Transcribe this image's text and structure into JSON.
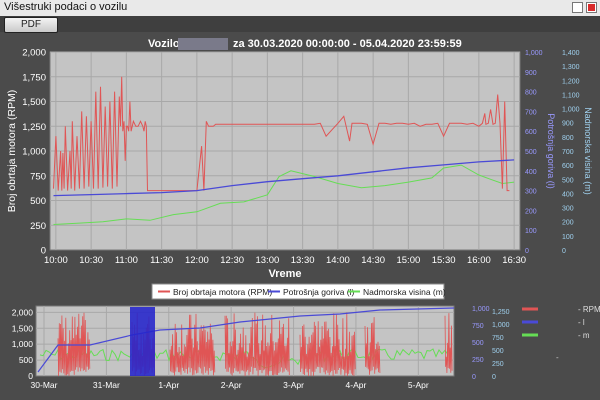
{
  "window": {
    "title": "Višestruki podaci o vozilu"
  },
  "toolbar": {
    "pdf_label": "PDF"
  },
  "main_chart": {
    "title_prefix": "Vozilo",
    "title_suffix": "za 30.03.2020 00:00:00 - 05.04.2020 23:59:59",
    "xlabel": "Vreme",
    "ylabel_left": "Broj obrtaja motora (RPM)",
    "ylabel_mid": "Potrošnja goriva (l)",
    "ylabel_right": "Nadmorska visina (m)",
    "x_ticks": [
      "10:00",
      "10:30",
      "11:00",
      "11:30",
      "12:00",
      "12:30",
      "13:00",
      "13:30",
      "14:00",
      "14:30",
      "15:00",
      "15:30",
      "16:00",
      "16:30"
    ],
    "y_left_ticks": [
      "0",
      "250",
      "500",
      "750",
      "1,000",
      "1,250",
      "1,500",
      "1,750",
      "2,000"
    ],
    "y_mid_ticks": [
      "0",
      "100",
      "200",
      "300",
      "400",
      "500",
      "600",
      "700",
      "800",
      "900",
      "1,000"
    ],
    "y_right_ticks": [
      "0",
      "100",
      "200",
      "300",
      "400",
      "500",
      "600",
      "700",
      "800",
      "900",
      "1,000",
      "1,100",
      "1,200",
      "1,300",
      "1,400"
    ],
    "colors": {
      "rpm": "#e05555",
      "fuel": "#4a4ad6",
      "altitude": "#66dd55",
      "plot_bg": "#c4c4c4"
    }
  },
  "legend": [
    {
      "name": "Broj obrtaja motora (RPM)",
      "color": "#e05555"
    },
    {
      "name": "Potrošnja goriva (l)",
      "color": "#4a4ad6"
    },
    {
      "name": "Nadmorska visina (m)",
      "color": "#66dd55"
    }
  ],
  "overview_chart": {
    "x_ticks": [
      "30-Mar",
      "31-Mar",
      "1-Apr",
      "2-Apr",
      "3-Apr",
      "4-Apr",
      "5-Apr"
    ],
    "y_left_ticks": [
      "0",
      "500",
      "1,000",
      "1,500",
      "2,000"
    ],
    "y_mid_ticks": [
      "0",
      "250",
      "500",
      "750",
      "1,000"
    ],
    "y_right_ticks": [
      "0",
      "250",
      "500",
      "750",
      "1,000",
      "1,250"
    ]
  },
  "side_legend": [
    {
      "name": "- RPM",
      "color": "#e05555"
    },
    {
      "name": "- l",
      "color": "#4a4ad6"
    },
    {
      "name": "- m",
      "color": "#66dd55"
    }
  ],
  "chart_data": {
    "type": "line",
    "title": "Vozilo za 30.03.2020 00:00:00 - 05.04.2020 23:59:59",
    "xlabel": "Vreme",
    "ylabel": "Broj obrtaja motora (RPM)",
    "xlim": [
      "09:55",
      "16:35"
    ],
    "ylim": [
      0,
      2000
    ],
    "grid": true,
    "legend_position": "bottom",
    "series": [
      {
        "name": "Broj obrtaja motora (RPM)",
        "axis": "left",
        "x": [
          "09:58",
          "10:00",
          "10:02",
          "10:04",
          "10:05",
          "10:06",
          "10:07",
          "10:08",
          "10:10",
          "10:12",
          "10:13",
          "10:14",
          "10:16",
          "10:18",
          "10:20",
          "10:22",
          "10:24",
          "10:26",
          "10:28",
          "10:30",
          "10:32",
          "10:34",
          "10:36",
          "10:38",
          "10:40",
          "10:42",
          "10:44",
          "10:46",
          "10:48",
          "10:50",
          "10:52",
          "10:54",
          "10:55",
          "10:56",
          "10:57",
          "10:58",
          "10:59",
          "11:00",
          "11:01",
          "11:02",
          "11:03",
          "11:04",
          "11:06",
          "11:08",
          "11:10",
          "11:12",
          "11:14",
          "11:15",
          "11:16",
          "11:17",
          "11:18",
          "11:20",
          "11:30",
          "11:40",
          "11:50",
          "12:00",
          "12:04",
          "12:06",
          "12:08",
          "12:10",
          "12:12",
          "12:14",
          "12:16",
          "12:20",
          "12:30",
          "12:40",
          "12:50",
          "13:00",
          "13:10",
          "13:20",
          "13:30",
          "13:40",
          "13:45",
          "13:50",
          "14:00",
          "14:05",
          "14:10",
          "14:12",
          "14:15",
          "14:20",
          "14:25",
          "14:30",
          "14:35",
          "14:40",
          "14:45",
          "14:50",
          "14:55",
          "15:00",
          "15:05",
          "15:10",
          "15:15",
          "15:20",
          "15:25",
          "15:30",
          "15:35",
          "15:40",
          "15:45",
          "15:50",
          "15:55",
          "16:00",
          "16:03",
          "16:05",
          "16:06",
          "16:08",
          "16:10",
          "16:12",
          "16:14",
          "16:16",
          "16:18",
          "16:20",
          "16:22",
          "16:24",
          "16:26"
        ],
        "values": [
          620,
          1150,
          600,
          1000,
          600,
          980,
          620,
          1250,
          600,
          1000,
          620,
          1300,
          600,
          1150,
          620,
          1400,
          620,
          1350,
          640,
          1300,
          620,
          1600,
          620,
          1650,
          630,
          1450,
          640,
          1500,
          620,
          1600,
          640,
          1550,
          1250,
          1750,
          1200,
          1300,
          900,
          1250,
          1250,
          1200,
          1500,
          1200,
          1300,
          1250,
          1250,
          1300,
          1250,
          1200,
          1300,
          1250,
          600,
          600,
          600,
          600,
          600,
          600,
          1050,
          600,
          1300,
          1250,
          1250,
          1250,
          1270,
          1270,
          1270,
          1270,
          1270,
          1270,
          1270,
          1270,
          1270,
          1270,
          1280,
          1150,
          1280,
          1350,
          1100,
          1280,
          1280,
          1280,
          1270,
          1070,
          1280,
          1280,
          1270,
          1280,
          1280,
          1270,
          1280,
          1250,
          1270,
          1270,
          1280,
          1150,
          1280,
          1280,
          1280,
          1270,
          1280,
          1250,
          1280,
          1380,
          1270,
          1280,
          1420,
          1270,
          1280,
          1570,
          1280,
          620,
          1500,
          600,
          600
        ]
      },
      {
        "name": "Potrošnja goriva (l)",
        "axis": "mid",
        "x": [
          "09:58",
          "10:30",
          "11:00",
          "11:30",
          "12:00",
          "12:30",
          "13:00",
          "13:30",
          "14:00",
          "14:30",
          "15:00",
          "15:30",
          "16:00",
          "16:30"
        ],
        "values": [
          275,
          280,
          285,
          290,
          300,
          325,
          345,
          360,
          375,
          395,
          415,
          430,
          445,
          455
        ]
      },
      {
        "name": "Nadmorska visina (m)",
        "axis": "right",
        "x": [
          "09:58",
          "10:20",
          "10:40",
          "11:00",
          "11:20",
          "11:40",
          "12:00",
          "12:20",
          "12:40",
          "13:00",
          "13:10",
          "13:20",
          "13:40",
          "14:00",
          "14:20",
          "14:40",
          "15:00",
          "15:20",
          "15:30",
          "15:45",
          "16:00",
          "16:10",
          "16:20",
          "16:30"
        ],
        "values": [
          180,
          190,
          200,
          220,
          210,
          250,
          270,
          330,
          340,
          390,
          520,
          560,
          520,
          470,
          440,
          455,
          480,
          510,
          580,
          600,
          530,
          500,
          470,
          480
        ]
      }
    ]
  }
}
